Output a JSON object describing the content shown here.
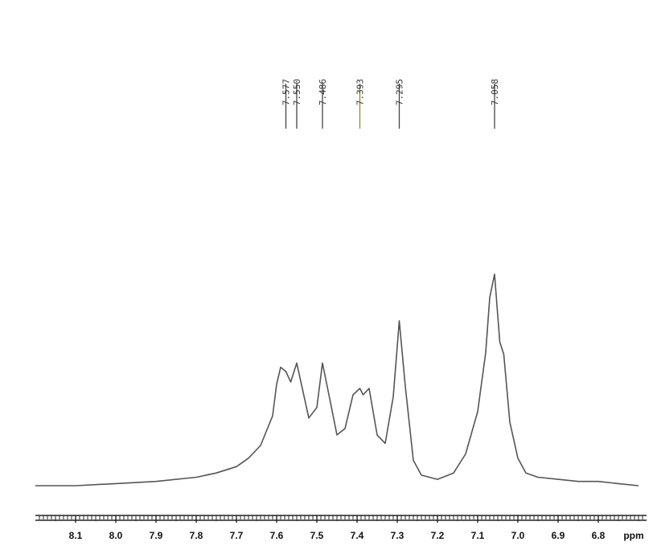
{
  "chart_data": {
    "type": "line",
    "xlabel": "ppm",
    "x_reversed": true,
    "xlim": [
      8.2,
      6.68
    ],
    "ylim": [
      0,
      1.0
    ],
    "x_ticks": [
      "8.1",
      "8.0",
      "7.9",
      "7.8",
      "7.7",
      "7.6",
      "7.5",
      "7.4",
      "7.3",
      "7.2",
      "7.1",
      "7.0",
      "6.9",
      "6.8"
    ],
    "x_tick_values": [
      8.1,
      8.0,
      7.9,
      7.8,
      7.7,
      7.6,
      7.5,
      7.4,
      7.3,
      7.2,
      7.1,
      7.0,
      6.9,
      6.8
    ],
    "peak_labels": [
      "7.577",
      "7.550",
      "7.486",
      "7.393",
      "7.295",
      "7.058"
    ],
    "peak_positions": [
      7.577,
      7.55,
      7.486,
      7.393,
      7.295,
      7.058
    ],
    "series": [
      {
        "x": [
          8.2,
          8.1,
          8.0,
          7.9,
          7.8,
          7.75,
          7.7,
          7.67,
          7.64,
          7.61,
          7.6,
          7.59,
          7.577,
          7.565,
          7.55,
          7.535,
          7.52,
          7.5,
          7.486,
          7.47,
          7.45,
          7.43,
          7.41,
          7.393,
          7.385,
          7.37,
          7.35,
          7.33,
          7.31,
          7.295,
          7.28,
          7.26,
          7.24,
          7.2,
          7.16,
          7.13,
          7.1,
          7.08,
          7.07,
          7.058,
          7.045,
          7.035,
          7.02,
          7.0,
          6.98,
          6.95,
          6.9,
          6.85,
          6.8,
          6.75,
          6.7
        ],
        "y": [
          0.0,
          0.0,
          0.01,
          0.02,
          0.04,
          0.06,
          0.09,
          0.13,
          0.19,
          0.33,
          0.48,
          0.56,
          0.54,
          0.49,
          0.58,
          0.45,
          0.32,
          0.37,
          0.58,
          0.43,
          0.24,
          0.27,
          0.43,
          0.46,
          0.43,
          0.46,
          0.24,
          0.2,
          0.42,
          0.78,
          0.47,
          0.12,
          0.05,
          0.03,
          0.06,
          0.15,
          0.35,
          0.63,
          0.89,
          1.0,
          0.68,
          0.62,
          0.3,
          0.13,
          0.06,
          0.04,
          0.03,
          0.02,
          0.02,
          0.01,
          0.0
        ]
      }
    ]
  },
  "colors": {
    "trace": "#555555",
    "axis": "#222222",
    "peak_marker": "#444444",
    "peak_marker_highlight": "#8a8a1e"
  }
}
